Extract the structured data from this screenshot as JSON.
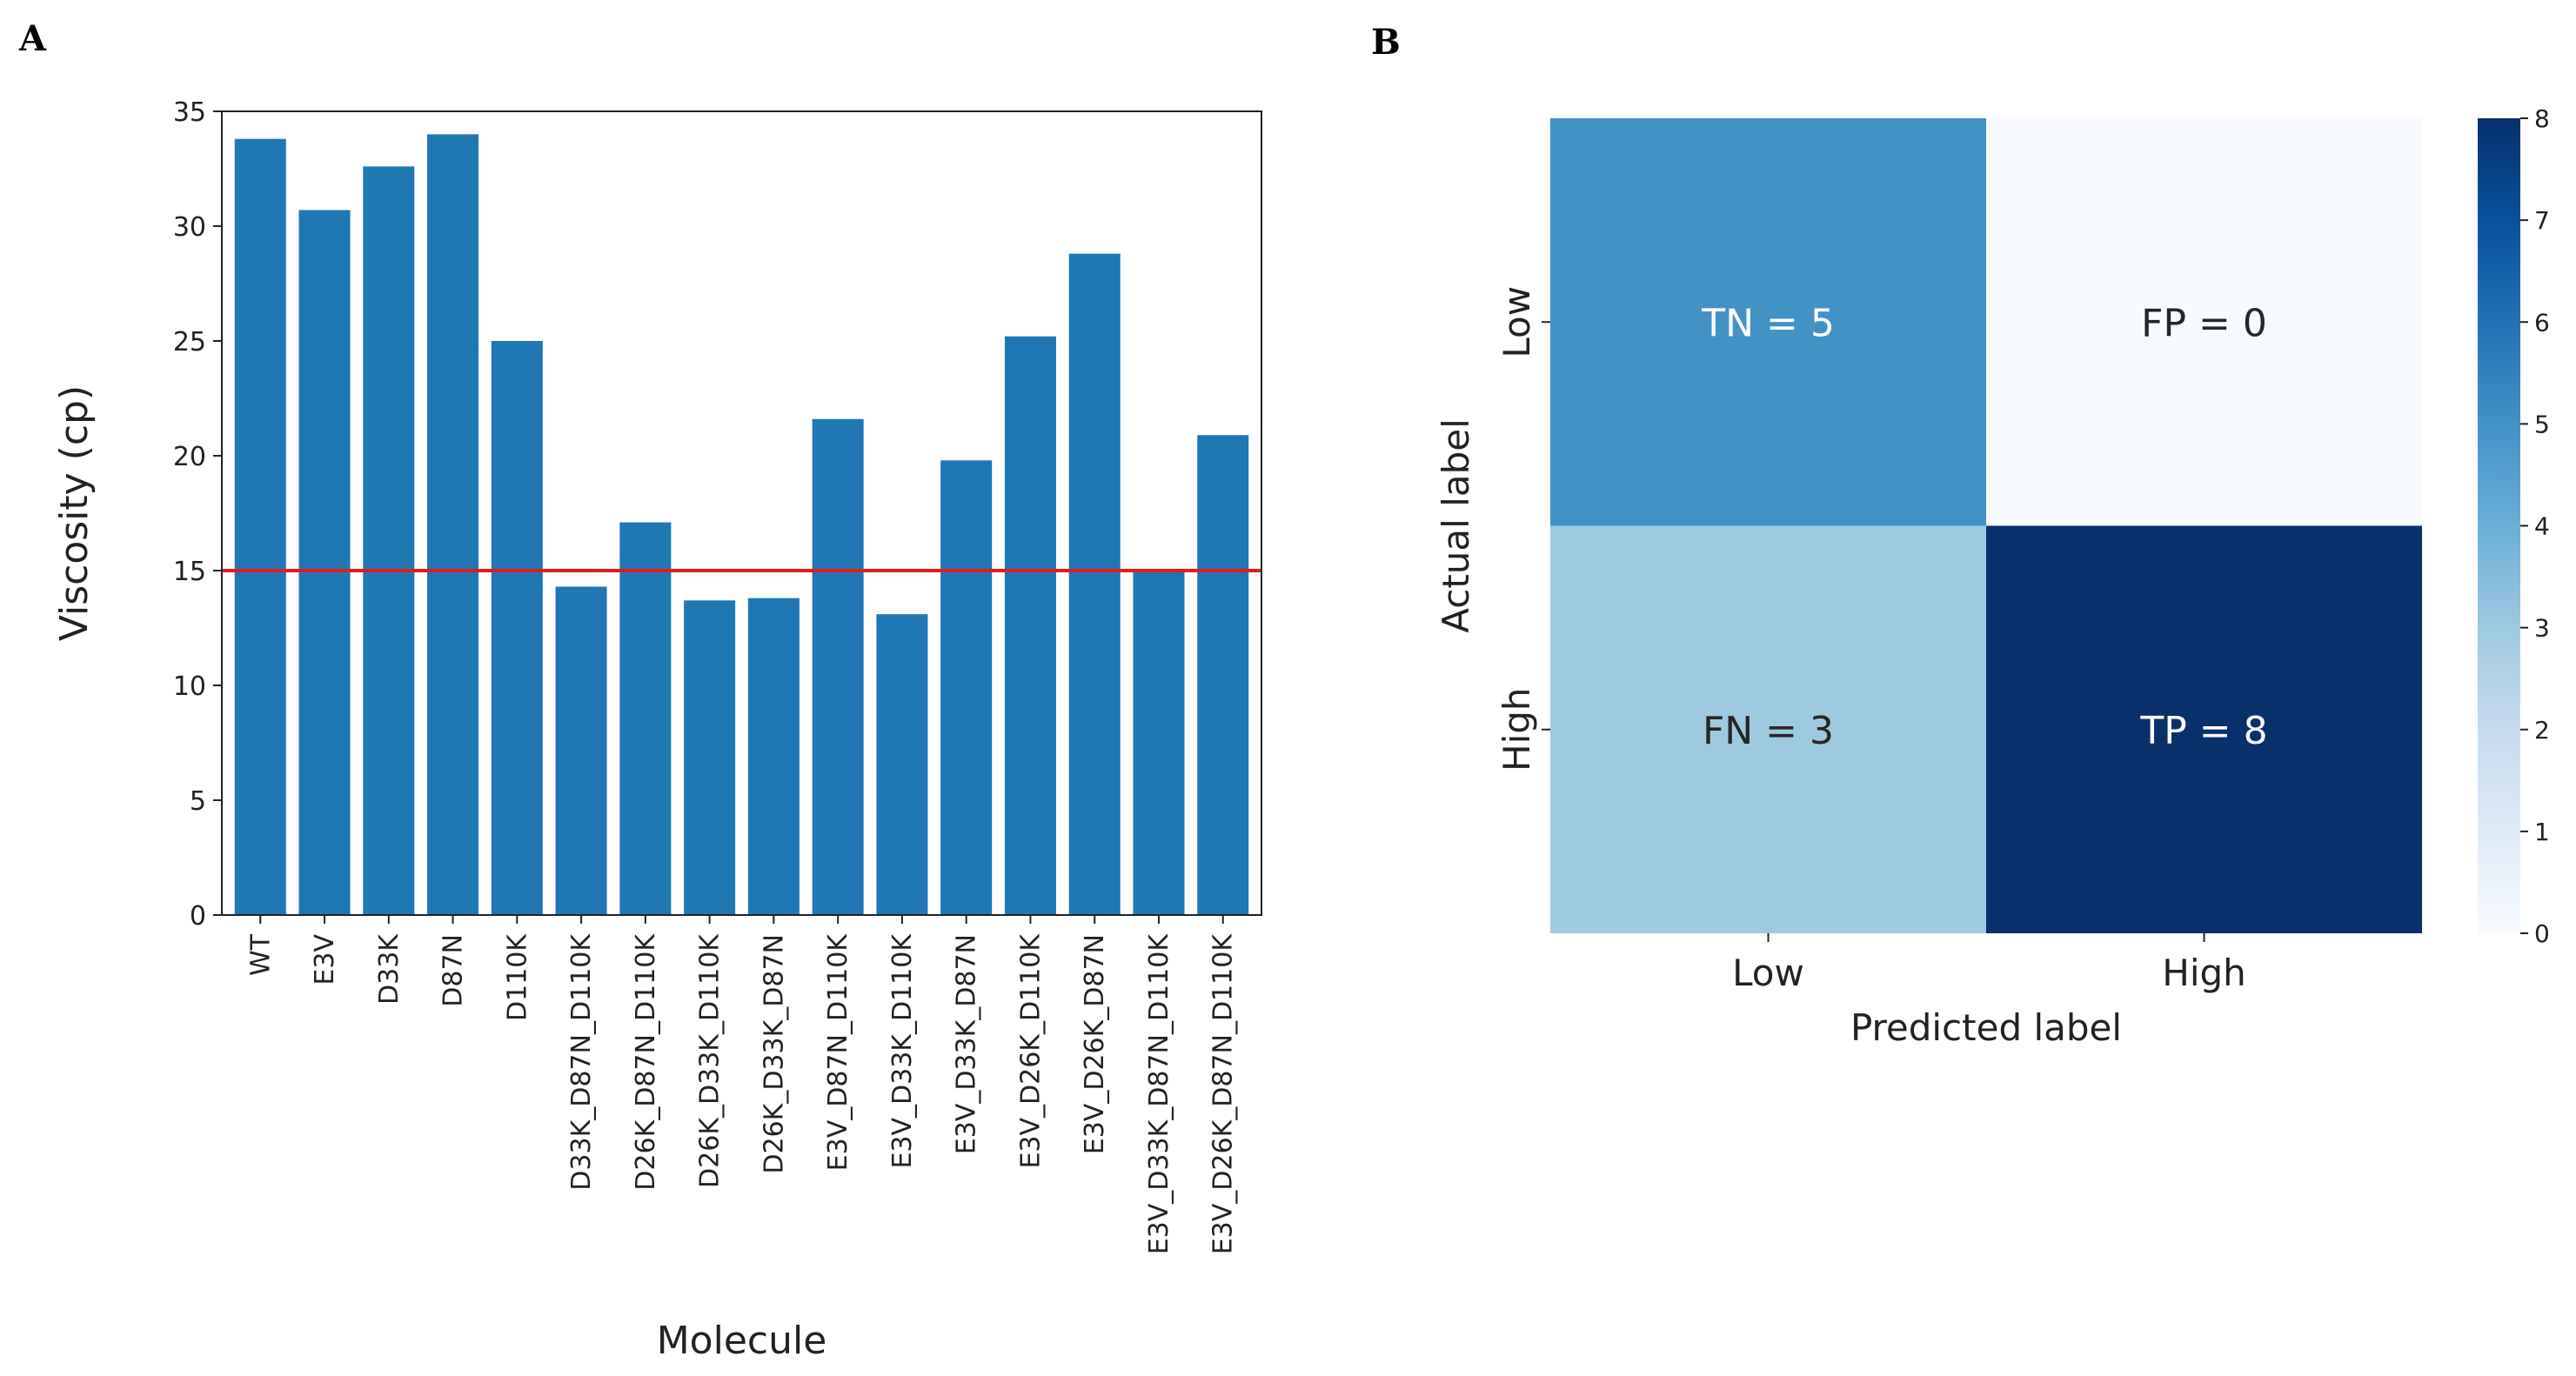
{
  "panels": {
    "a": "A",
    "b": "B"
  },
  "chart_data": [
    {
      "type": "bar",
      "xlabel": "Molecule",
      "ylabel": "Viscosity (cp)",
      "ylim": [
        0,
        35
      ],
      "yticks": [
        0,
        5,
        10,
        15,
        20,
        25,
        30,
        35
      ],
      "categories": [
        "WT",
        "E3V",
        "D33K",
        "D87N",
        "D110K",
        "D33K_D87N_D110K",
        "D26K_D87N_D110K",
        "D26K_D33K_D110K",
        "D26K_D33K_D87N",
        "E3V_D87N_D110K",
        "E3V_D33K_D110K",
        "E3V_D33K_D87N",
        "E3V_D26K_D110K",
        "E3V_D26K_D87N",
        "E3V_D33K_D87N_D110K",
        "E3V_D26K_D87N_D110K"
      ],
      "values": [
        33.8,
        30.7,
        32.6,
        34.0,
        25.0,
        14.3,
        17.1,
        13.7,
        13.8,
        21.6,
        13.1,
        19.8,
        25.2,
        28.8,
        15.0,
        20.9
      ],
      "bar_color": "#1f77b4",
      "threshold": 15,
      "threshold_color": "#e41a1c",
      "grid": false
    },
    {
      "type": "heatmap",
      "xlabel": "Predicted label",
      "ylabel": "Actual label",
      "x_categories": [
        "Low",
        "High"
      ],
      "y_categories": [
        "Low",
        "High"
      ],
      "values": [
        [
          5,
          0
        ],
        [
          3,
          8
        ]
      ],
      "cell_labels": [
        [
          "TN = 5",
          "FP = 0"
        ],
        [
          "FN = 3",
          "TP = 8"
        ]
      ],
      "colormap": "Blues",
      "colorbar_range": [
        0,
        8
      ],
      "colorbar_ticks": [
        0,
        1,
        2,
        3,
        4,
        5,
        6,
        7,
        8
      ]
    }
  ]
}
